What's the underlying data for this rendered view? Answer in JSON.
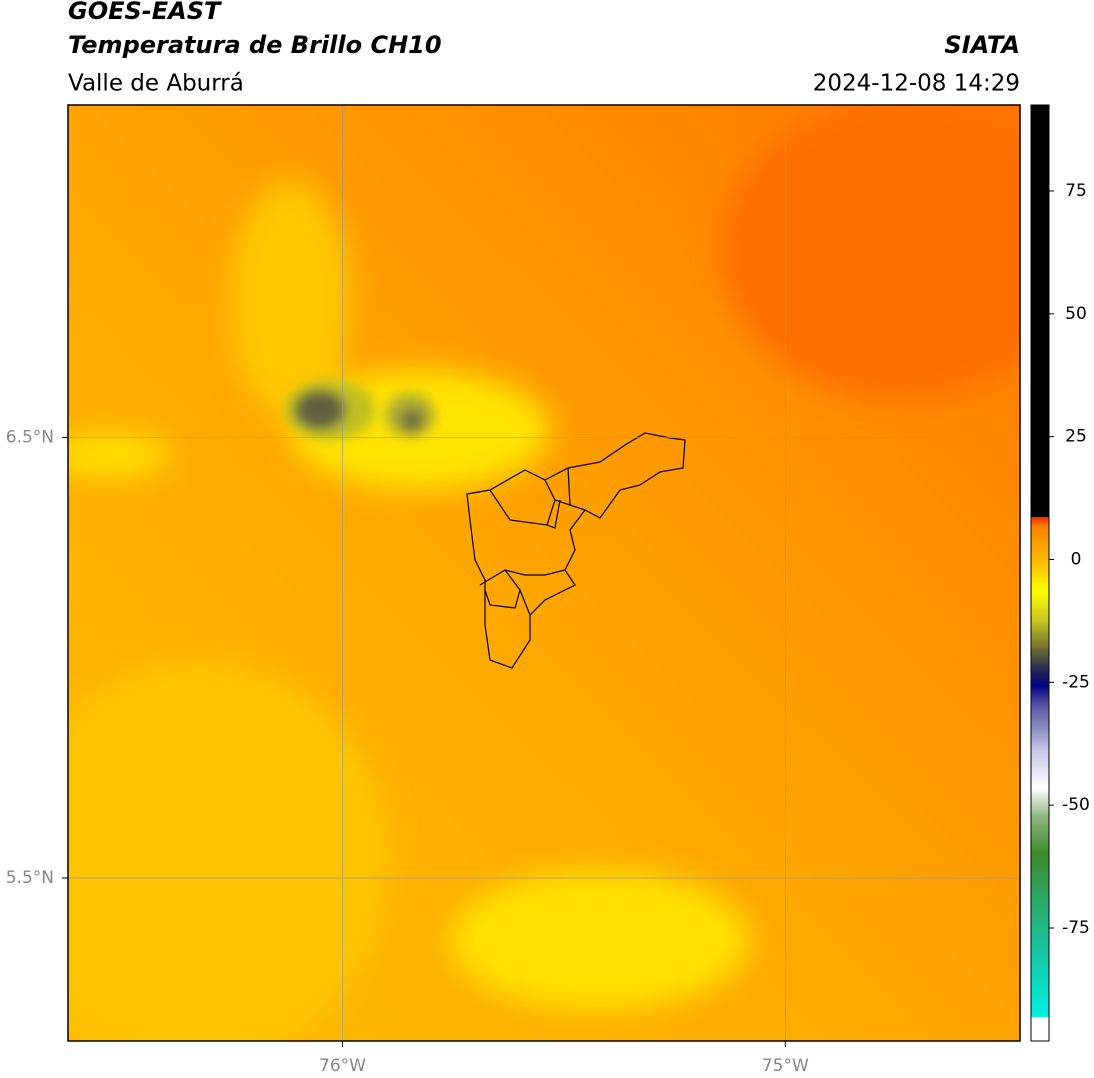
{
  "header": {
    "title": "GOES-EAST",
    "subtitle": "Temperatura de Brillo CH10",
    "region": "Valle de Aburrá",
    "source": "SIATA",
    "timestamp": "2024-12-08 14:29"
  },
  "map": {
    "xlim": [
      -76.62,
      -74.47
    ],
    "ylim": [
      5.13,
      7.255
    ],
    "xticks": [
      {
        "value": -76,
        "label": "76°W"
      },
      {
        "value": -75,
        "label": "75°W"
      }
    ],
    "yticks": [
      {
        "value": 6.5,
        "label": "6.5°N"
      },
      {
        "value": 5.5,
        "label": "5.5°N"
      }
    ],
    "grid": true
  },
  "colorbar": {
    "lim": [
      -98,
      92.5
    ],
    "ticks": [
      -75,
      -50,
      -25,
      0,
      25,
      50,
      75
    ]
  }
}
